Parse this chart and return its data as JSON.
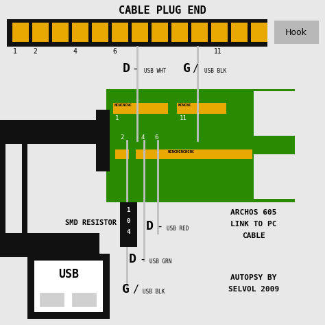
{
  "title": "CABLE PLUG END",
  "bg_color": "#e8e8e8",
  "cable_bar_color": "#111111",
  "pin_color": "#e8a800",
  "green_board_color": "#2a8a00",
  "black_wire_color": "#111111",
  "white_bg": "#ffffff",
  "gray_button_color": "#b8b8b8",
  "hook_label": "Hook",
  "archos_line1": "ARCHOS 605",
  "archos_line2": "LINK TO PC",
  "archos_line3": "CABLE",
  "autopsy_line1": "AUTOPSY BY",
  "autopsy_line2": "SELVOL 2009",
  "smd_label": "SMD RESISTOR",
  "usb_label": "USB",
  "title_fontsize": 11
}
